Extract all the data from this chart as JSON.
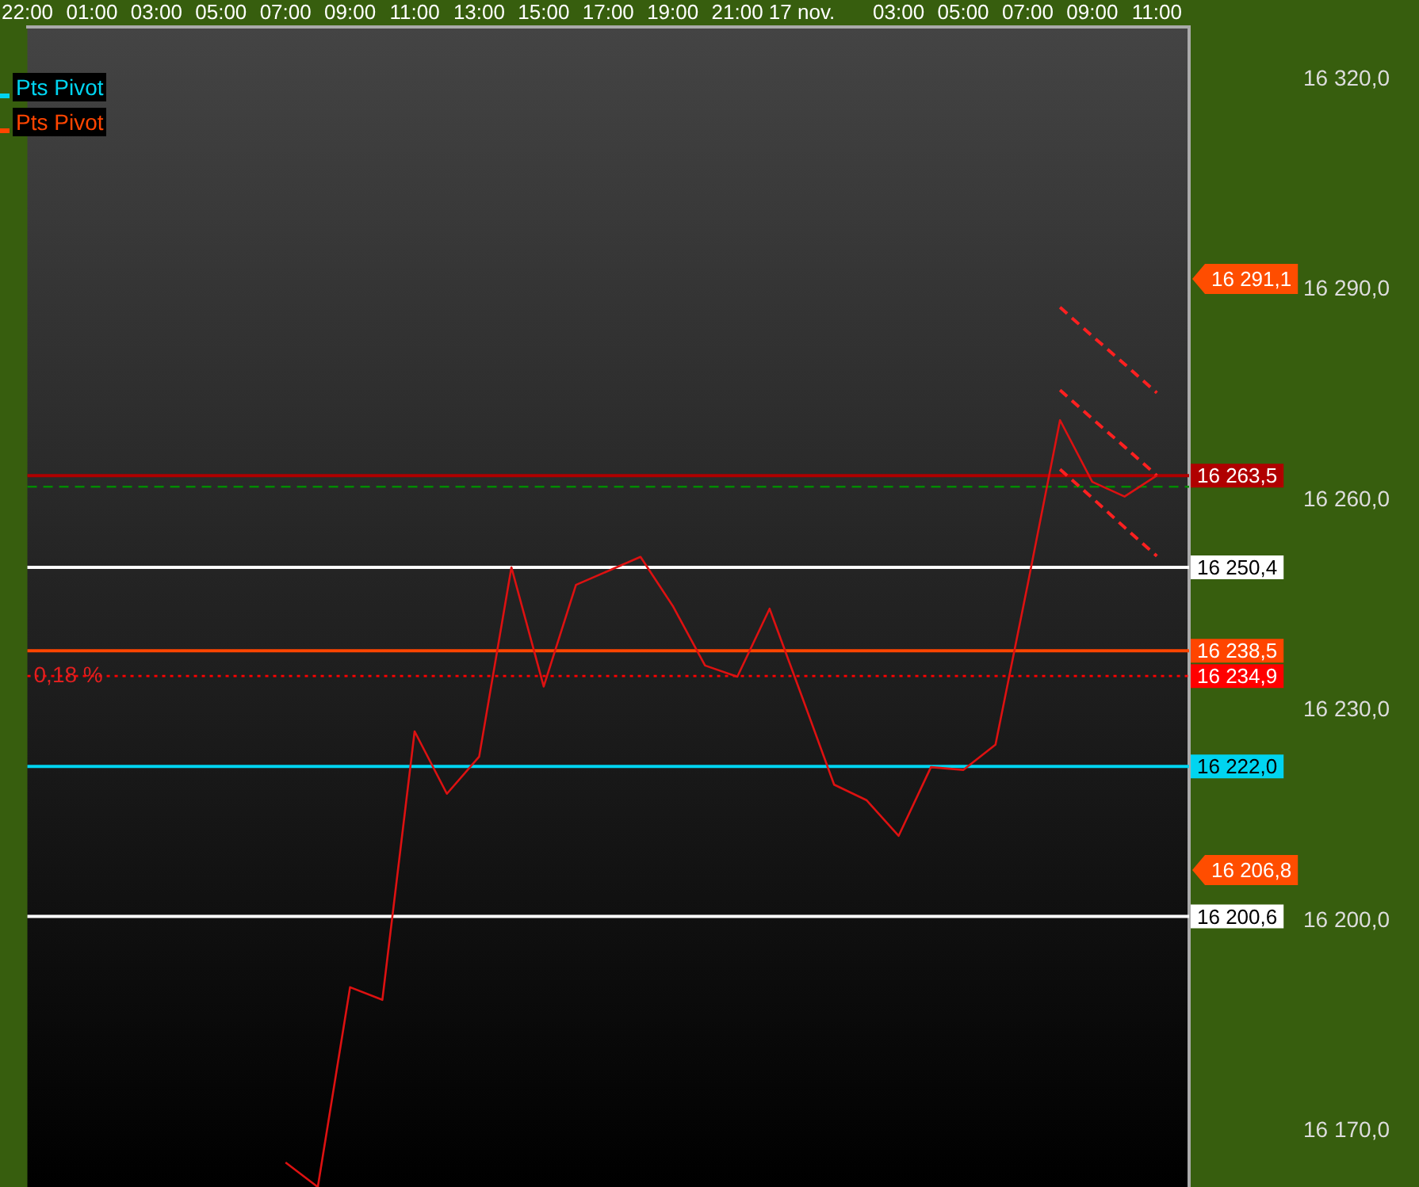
{
  "chart_data": {
    "type": "line",
    "categories": [
      "22:00",
      null,
      "01:00",
      null,
      "03:00",
      null,
      "05:00",
      null,
      "07:00",
      null,
      "09:00",
      null,
      "11:00",
      null,
      "13:00",
      null,
      "15:00",
      null,
      "17:00",
      null,
      "19:00",
      null,
      "21:00",
      null,
      "17 nov.",
      null,
      null,
      "03:00",
      null,
      "05:00",
      null,
      "07:00",
      null,
      "09:00",
      null,
      "11:00",
      null
    ],
    "series": [
      {
        "color": "#dd1111",
        "values": [
          null,
          null,
          null,
          null,
          null,
          null,
          null,
          null,
          16165.5,
          16162,
          16190.5,
          16188.7,
          16227.0,
          16218.1,
          16223.4,
          16250.4,
          16233.4,
          16247.9,
          16249.9,
          16251.9,
          16244.9,
          16236.4,
          16234.8,
          16244.5,
          16232.0,
          16219.4,
          16217.2,
          16212.1,
          16221.9,
          16221.5,
          16225.1,
          16248.0,
          16271.4,
          16262.6,
          16260.5,
          16263.5,
          null
        ]
      },
      {
        "color": "#ff2020",
        "line_style": "dashed",
        "values": [
          null,
          null,
          null,
          null,
          null,
          null,
          null,
          null,
          null,
          null,
          null,
          null,
          null,
          null,
          null,
          null,
          null,
          null,
          null,
          null,
          null,
          null,
          null,
          null,
          null,
          null,
          null,
          null,
          null,
          null,
          null,
          null,
          16287.5,
          16283.4,
          16279.4,
          16275.3,
          null
        ]
      },
      {
        "color": "#ff2020",
        "line_style": "dashed",
        "values": [
          null,
          null,
          null,
          null,
          null,
          null,
          null,
          null,
          null,
          null,
          null,
          null,
          null,
          null,
          null,
          null,
          null,
          null,
          null,
          null,
          null,
          null,
          null,
          null,
          null,
          null,
          null,
          null,
          null,
          null,
          null,
          null,
          16275.7,
          16271.6,
          16267.6,
          16263.5,
          null
        ]
      },
      {
        "color": "#ff2020",
        "line_style": "dashed",
        "values": [
          null,
          null,
          null,
          null,
          null,
          null,
          null,
          null,
          null,
          null,
          null,
          null,
          null,
          null,
          null,
          null,
          null,
          null,
          null,
          null,
          null,
          null,
          null,
          null,
          null,
          null,
          null,
          null,
          null,
          null,
          null,
          null,
          16264.4,
          16260.3,
          16256.1,
          16252.0,
          null
        ]
      },
      {
        "name": "Pts Pivot",
        "color": "#00d4f0",
        "values": [
          16222.0,
          16222.0,
          16222.0,
          16222.0,
          16222.0,
          16222.0,
          16222.0,
          16222.0,
          16222.0,
          16222.0,
          16222.0,
          16222.0,
          16222.0,
          16222.0,
          16222.0,
          16222.0,
          16222.0,
          16222.0,
          16222.0,
          16222.0,
          16222.0,
          16222.0,
          16222.0,
          16222.0,
          16222.0,
          16222.0,
          16222.0,
          16222.0,
          16222.0,
          16222.0,
          16222.0,
          16222.0,
          16222.0,
          16222.0,
          16222.0,
          16222.0,
          16222.0
        ],
        "value_labels": [
          null,
          null,
          null,
          null,
          null,
          null,
          null,
          null,
          null,
          null,
          null,
          null,
          null,
          null,
          null,
          null,
          null,
          null,
          null,
          null,
          null,
          null,
          null,
          null,
          null,
          null,
          null,
          null,
          null,
          null,
          null,
          null,
          null,
          null,
          null,
          null,
          "16 222,0"
        ]
      },
      {
        "name": "Pts Pivot",
        "color": "#ff4500",
        "values": [
          16238.5,
          16238.5,
          16238.5,
          16238.5,
          16238.5,
          16238.5,
          16238.5,
          16238.5,
          16238.5,
          16238.5,
          16238.5,
          16238.5,
          16238.5,
          16238.5,
          16238.5,
          16238.5,
          16238.5,
          16238.5,
          16238.5,
          16238.5,
          16238.5,
          16238.5,
          16238.5,
          16238.5,
          16238.5,
          16238.5,
          16238.5,
          16238.5,
          16238.5,
          16238.5,
          16238.5,
          16238.5,
          16238.5,
          16238.5,
          16238.5,
          16238.5,
          16238.5
        ],
        "value_labels": [
          null,
          null,
          null,
          null,
          null,
          null,
          null,
          null,
          null,
          null,
          null,
          null,
          null,
          null,
          null,
          null,
          null,
          null,
          null,
          null,
          null,
          null,
          null,
          null,
          null,
          null,
          null,
          null,
          null,
          null,
          null,
          null,
          null,
          null,
          null,
          null,
          "16 238,5"
        ]
      }
    ],
    "ylim": [
      16162,
      16327.5
    ],
    "yticks": [
      {
        "value": 16320,
        "label": "16 320,0"
      },
      {
        "value": 16290,
        "label": "16 290,0"
      },
      {
        "value": 16260,
        "label": "16 260,0"
      },
      {
        "value": 16230,
        "label": "16 230,0"
      },
      {
        "value": 16200,
        "label": "16 200,0"
      },
      {
        "value": 16170,
        "label": "16 170,0"
      }
    ],
    "ref_lines": [
      {
        "axis": "y",
        "value": 16263.5,
        "label": "16 263,5",
        "color": "#b00000"
      },
      {
        "axis": "y",
        "value": 16261.9,
        "color": "#008a00",
        "line_style": "dashed"
      },
      {
        "axis": "y",
        "value": 16250.4,
        "label": "16 250,4",
        "color": "#ffffff"
      },
      {
        "axis": "y",
        "value": 16234.9,
        "label": "16 234,9",
        "color": "#ff0000",
        "line_style": "dotted"
      },
      {
        "axis": "y",
        "value": 16200.6,
        "label": "16 200,6",
        "color": "#ffffff"
      }
    ],
    "annotations": [
      "16 291,1",
      "16 206,8",
      {
        "text": "0,18 %",
        "x": "22:00",
        "y": 16234.9
      }
    ],
    "legend": "top left",
    "marker": "none"
  }
}
